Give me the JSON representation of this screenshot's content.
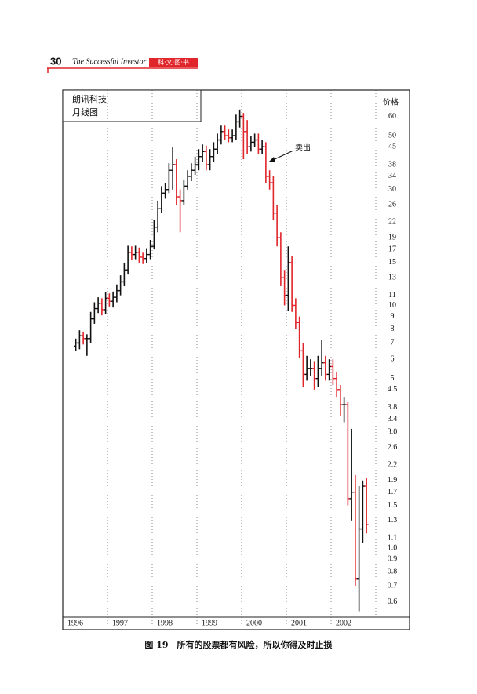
{
  "header": {
    "page_number": "30",
    "book_title": "The Successful Investor",
    "series_label": "科·文·图·书"
  },
  "chart_data": {
    "type": "ohlc",
    "title": "朗讯科技",
    "subtitle": "月线图",
    "y_label": "价格",
    "log_scale": true,
    "up_color": "#111111",
    "down_color": "#e0262b",
    "years": [
      "1996",
      "1997",
      "1998",
      "1999",
      "2000",
      "2001",
      "2002"
    ],
    "annotation": "卖出",
    "ylim": [
      0.52,
      77
    ],
    "yticks": [
      60,
      50,
      45,
      38,
      34,
      30,
      26,
      22,
      19,
      17,
      15,
      13,
      11,
      10,
      9,
      8,
      7,
      6,
      5,
      4.5,
      3.8,
      3.4,
      {
        "value": 3,
        "label": "3.0"
      },
      2.6,
      2.2,
      1.9,
      1.7,
      1.5,
      1.3,
      1.1,
      {
        "value": 1,
        "label": "1.0"
      },
      0.9,
      0.8,
      0.7,
      0.6
    ],
    "open": [
      6.8,
      7.0,
      7.5,
      7.3,
      7.3,
      8.8,
      9.7,
      10.2,
      9.6,
      10.7,
      10.4,
      10.8,
      11.5,
      12.5,
      14,
      16.5,
      16.2,
      16.5,
      15.8,
      15.6,
      16.2,
      17.5,
      21,
      25,
      29,
      30,
      36,
      38,
      28,
      27,
      31,
      34,
      36,
      38,
      41,
      43,
      38,
      41,
      44,
      48,
      52,
      50,
      49,
      50,
      57,
      60,
      52,
      45,
      47,
      48,
      44,
      45,
      34,
      32,
      24,
      19,
      13,
      11,
      15,
      10,
      8.5,
      6.5,
      5.2,
      5.5,
      5.5,
      5.0,
      5.5,
      5.8,
      5.2,
      5.6,
      5.0,
      4.5,
      3.9,
      3.9,
      1.6,
      1.7,
      0.75,
      1.2,
      1.8
    ],
    "high": [
      7.3,
      7.9,
      7.8,
      7.6,
      9.4,
      10.3,
      10.8,
      10.7,
      11.3,
      11.2,
      11.4,
      12.2,
      13.3,
      15,
      17.6,
      17.5,
      17.6,
      17.3,
      16.6,
      17.2,
      18.6,
      22.5,
      27,
      31,
      32,
      38.5,
      45,
      40,
      30,
      33,
      36,
      38.5,
      41,
      44,
      46,
      45.5,
      44,
      47,
      51,
      55,
      55,
      53,
      53,
      61,
      64,
      62,
      58,
      50,
      51,
      51,
      48,
      47,
      36,
      34,
      26,
      20,
      14,
      17.5,
      16,
      10.7,
      9.0,
      7.0,
      6.2,
      6.0,
      5.9,
      6.2,
      7.2,
      6.2,
      6.0,
      6.0,
      5.3,
      4.7,
      4.2,
      4.0,
      3.1,
      2.0,
      1.8,
      1.9,
      1.95
    ],
    "low": [
      6.5,
      6.6,
      6.9,
      6.2,
      7.0,
      8.4,
      9.3,
      9.1,
      9.2,
      9.9,
      9.8,
      10.3,
      11,
      12,
      13.4,
      15.4,
      15.5,
      15,
      14.8,
      15,
      15.5,
      17,
      20,
      24,
      27.5,
      29,
      30,
      26,
      20,
      26,
      30,
      32.5,
      34.5,
      36,
      39,
      36,
      36,
      39,
      42,
      46,
      48,
      47,
      47,
      48,
      54,
      40,
      42,
      43,
      45,
      42,
      42,
      32,
      30,
      22.5,
      17.5,
      12,
      10,
      9.5,
      9.4,
      8.0,
      6.1,
      4.6,
      4.9,
      5.1,
      4.5,
      4.6,
      5.1,
      4.9,
      4.9,
      4.7,
      4.2,
      3.5,
      3.3,
      1.5,
      1.3,
      0.7,
      0.55,
      1.05,
      1.15
    ],
    "close": [
      7.0,
      7.5,
      7.3,
      7.3,
      8.8,
      9.7,
      10.2,
      9.6,
      10.7,
      10.4,
      10.8,
      11.5,
      12.5,
      14,
      16.5,
      16.2,
      16.5,
      15.8,
      15.6,
      16.2,
      17.5,
      21,
      25,
      29,
      30,
      36,
      38,
      28,
      27,
      31,
      34,
      36,
      38,
      41,
      43,
      38,
      41,
      44,
      48,
      52,
      50,
      49,
      50,
      57,
      60,
      52,
      45,
      47,
      48,
      44,
      45,
      34,
      32,
      24,
      19,
      13,
      11,
      15,
      10,
      8.5,
      6.5,
      5.2,
      5.5,
      5.5,
      5.0,
      5.5,
      5.8,
      5.2,
      5.6,
      5.0,
      4.5,
      3.9,
      3.9,
      1.6,
      1.7,
      0.75,
      1.2,
      1.8,
      1.25
    ]
  },
  "caption": "图 19　所有的股票都有风险，所以你得及时止损"
}
